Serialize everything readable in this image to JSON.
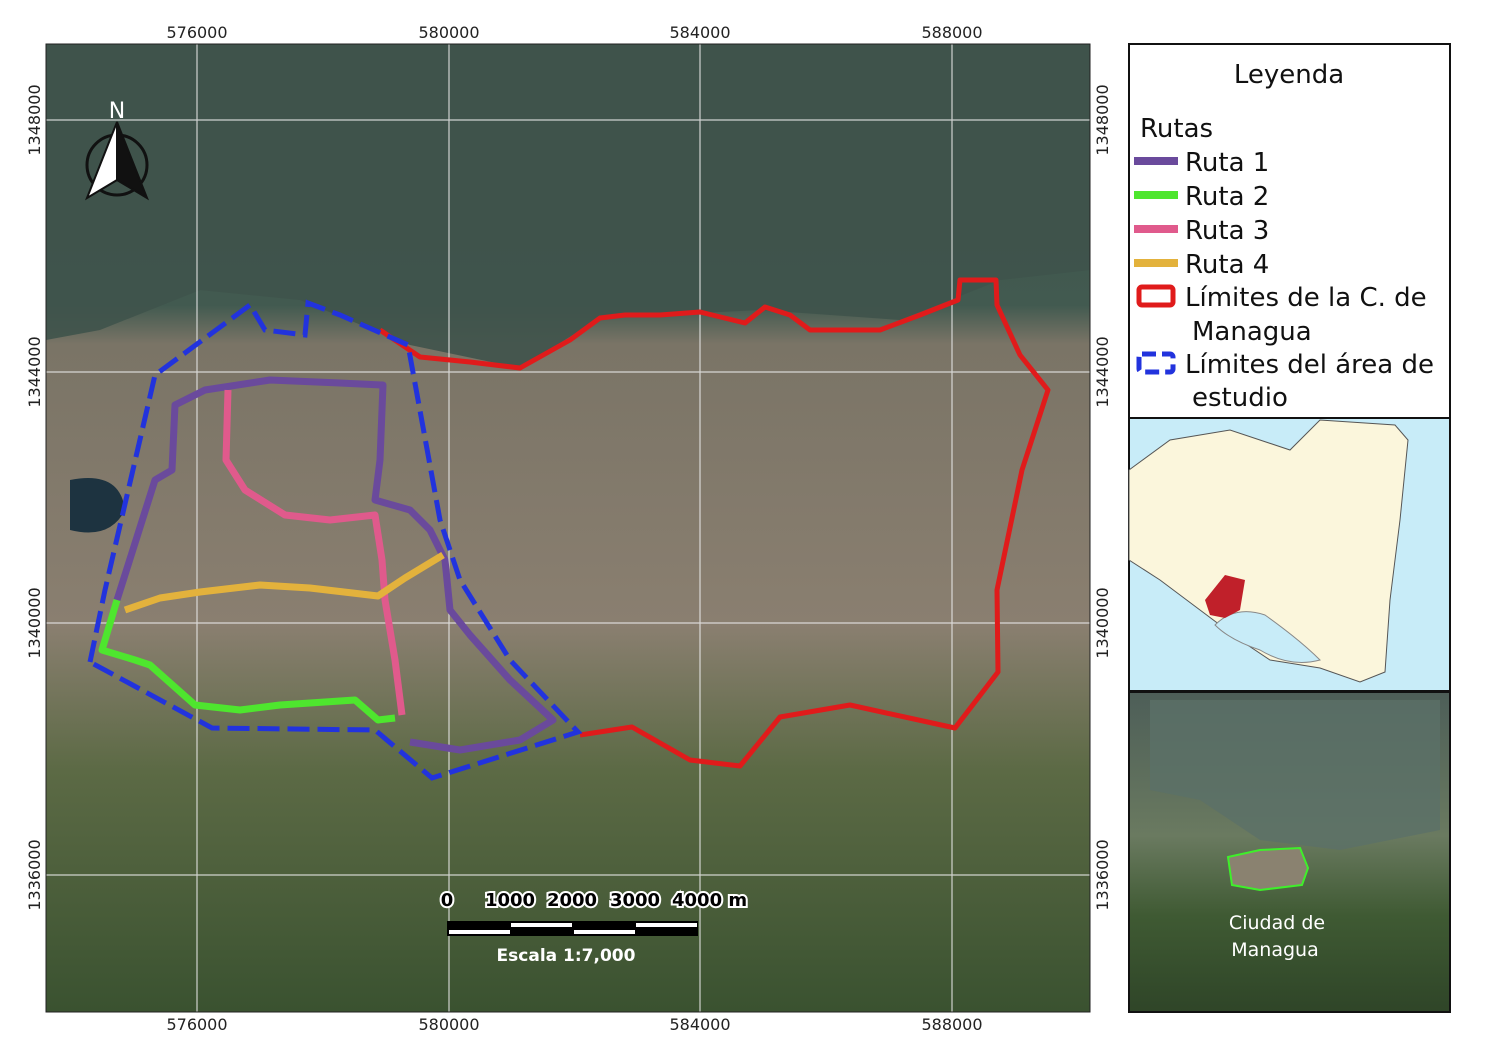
{
  "map": {
    "x_ticks": [
      "576000",
      "580000",
      "584000",
      "588000"
    ],
    "y_ticks": [
      "1348000",
      "1344000",
      "1340000",
      "1336000"
    ],
    "north_label": "N",
    "scale_bar": {
      "labels": [
        "0",
        "1000",
        "2000",
        "3000",
        "4000 m"
      ],
      "caption": "Escala 1:7,000"
    }
  },
  "legend": {
    "title": "Leyenda",
    "group": "Rutas",
    "items": [
      {
        "label": "Ruta 1",
        "color": "#6a4a9c"
      },
      {
        "label": "Ruta 2",
        "color": "#4ee62e"
      },
      {
        "label": "Ruta 3",
        "color": "#e05a8c"
      },
      {
        "label": "Ruta 4",
        "color": "#e3b23c"
      },
      {
        "label_1": "Límites de la C. de",
        "label_2": "Managua",
        "color": "#e01b1b"
      },
      {
        "label_1": "Límites del área de",
        "label_2": "estudio",
        "color": "#2233dd"
      }
    ]
  },
  "inset_locator": {
    "highlight_color": "#c0202a",
    "land_color": "#fbf6dc",
    "water_color": "#c8ecf8"
  },
  "inset_city": {
    "label_1": "Ciudad de",
    "label_2": "Managua",
    "outline_color": "#3ef02a"
  }
}
